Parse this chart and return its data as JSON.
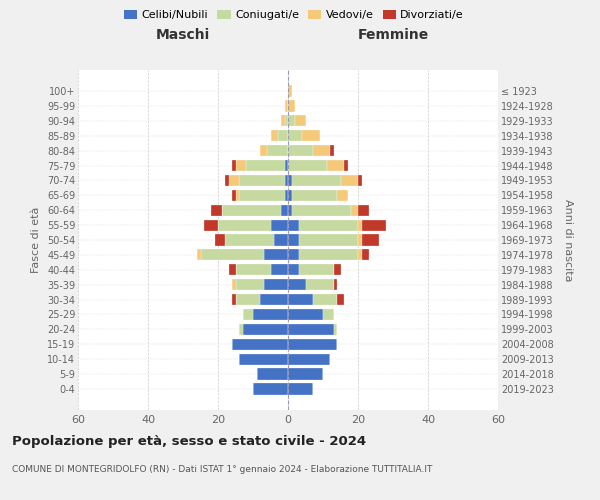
{
  "age_groups": [
    "100+",
    "95-99",
    "90-94",
    "85-89",
    "80-84",
    "75-79",
    "70-74",
    "65-69",
    "60-64",
    "55-59",
    "50-54",
    "45-49",
    "40-44",
    "35-39",
    "30-34",
    "25-29",
    "20-24",
    "15-19",
    "10-14",
    "5-9",
    "0-4"
  ],
  "birth_years": [
    "≤ 1923",
    "1924-1928",
    "1929-1933",
    "1934-1938",
    "1939-1943",
    "1944-1948",
    "1949-1953",
    "1954-1958",
    "1959-1963",
    "1964-1968",
    "1969-1973",
    "1974-1978",
    "1979-1983",
    "1984-1988",
    "1989-1993",
    "1994-1998",
    "1999-2003",
    "2004-2008",
    "2009-2013",
    "2014-2018",
    "2019-2023"
  ],
  "males": {
    "celibe": [
      0,
      0,
      0,
      0,
      0,
      1,
      1,
      1,
      2,
      5,
      4,
      7,
      5,
      7,
      8,
      10,
      13,
      16,
      14,
      9,
      10
    ],
    "coniugato": [
      0,
      0,
      1,
      3,
      6,
      11,
      13,
      13,
      17,
      15,
      14,
      18,
      10,
      8,
      7,
      3,
      1,
      0,
      0,
      0,
      0
    ],
    "vedovo": [
      0,
      1,
      1,
      2,
      2,
      3,
      3,
      1,
      0,
      0,
      0,
      1,
      0,
      1,
      0,
      0,
      0,
      0,
      0,
      0,
      0
    ],
    "divorziato": [
      0,
      0,
      0,
      0,
      0,
      1,
      1,
      1,
      3,
      4,
      3,
      0,
      2,
      0,
      1,
      0,
      0,
      0,
      0,
      0,
      0
    ]
  },
  "females": {
    "nubile": [
      0,
      0,
      0,
      0,
      0,
      0,
      1,
      1,
      1,
      3,
      3,
      3,
      3,
      5,
      7,
      10,
      13,
      14,
      12,
      10,
      7
    ],
    "coniugata": [
      0,
      0,
      2,
      4,
      7,
      11,
      14,
      13,
      17,
      17,
      17,
      17,
      10,
      8,
      7,
      3,
      1,
      0,
      0,
      0,
      0
    ],
    "vedova": [
      1,
      2,
      3,
      5,
      5,
      5,
      5,
      3,
      2,
      1,
      1,
      1,
      0,
      0,
      0,
      0,
      0,
      0,
      0,
      0,
      0
    ],
    "divorziata": [
      0,
      0,
      0,
      0,
      1,
      1,
      1,
      0,
      3,
      7,
      5,
      2,
      2,
      1,
      2,
      0,
      0,
      0,
      0,
      0,
      0
    ]
  },
  "colors": {
    "celibe": "#4472c4",
    "coniugato": "#c5d9a0",
    "vedovo": "#f5c97a",
    "divorziato": "#c0392b"
  },
  "title": "Popolazione per età, sesso e stato civile - 2024",
  "subtitle": "COMUNE DI MONTEGRIDOLFO (RN) - Dati ISTAT 1° gennaio 2024 - Elaborazione TUTTITALIA.IT",
  "header_left": "Maschi",
  "header_right": "Femmine",
  "ylabel_left": "Fasce di età",
  "ylabel_right": "Anni di nascita",
  "xlim": 60,
  "legend_labels": [
    "Celibi/Nubili",
    "Coniugati/e",
    "Vedovi/e",
    "Divorziati/e"
  ],
  "background_color": "#f0f0f0",
  "plot_bg": "#ffffff"
}
